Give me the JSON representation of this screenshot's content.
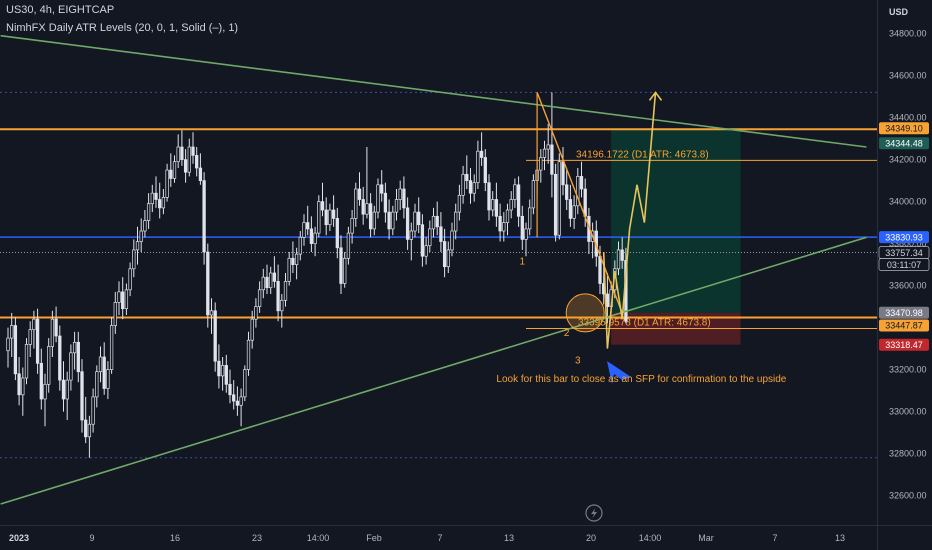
{
  "header": {
    "symbol_line": "US30, 4h, EIGHTCAP",
    "indicator_line": "NimhFX Daily ATR Levels (20, 0, 1, Solid (–), 1)"
  },
  "currency_label": "USD",
  "colors": {
    "background": "#131722",
    "candle": "#e0e3eb",
    "orange": "#f7a233",
    "green_trend": "#6fa867",
    "blue_level": "#2962ff",
    "dotted_blue": "#3a4fa8",
    "target_zone": "#0b3a30",
    "stop_zone": "#5a1f24"
  },
  "chart_data": {
    "type": "candlestick",
    "y_axis": {
      "ylim": [
        32460,
        34960
      ],
      "ticks": [
        32600,
        32800,
        33000,
        33200,
        33400,
        33600,
        33800,
        34000,
        34200,
        34400,
        34600,
        34800
      ]
    },
    "x_axis": {
      "ticks": [
        "2023",
        "9",
        "16",
        "23",
        "14:00",
        "Feb",
        "7",
        "13",
        "20",
        "14:00",
        "Mar",
        "7",
        "13"
      ]
    },
    "candles": [
      [
        33290,
        33400,
        33210,
        33350
      ],
      [
        33350,
        33470,
        33260,
        33410
      ],
      [
        33410,
        33450,
        33150,
        33180
      ],
      [
        33180,
        33260,
        33030,
        33080
      ],
      [
        33080,
        33210,
        32980,
        33160
      ],
      [
        33160,
        33350,
        33130,
        33320
      ],
      [
        33320,
        33430,
        33260,
        33390
      ],
      [
        33390,
        33480,
        33300,
        33440
      ],
      [
        33440,
        33490,
        33180,
        33230
      ],
      [
        33230,
        33300,
        33010,
        33060
      ],
      [
        33060,
        33180,
        32930,
        33130
      ],
      [
        33130,
        33350,
        33090,
        33310
      ],
      [
        33310,
        33480,
        33260,
        33440
      ],
      [
        33440,
        33500,
        33330,
        33360
      ],
      [
        33360,
        33410,
        33100,
        33150
      ],
      [
        33150,
        33240,
        33000,
        33060
      ],
      [
        33060,
        33190,
        32960,
        33150
      ],
      [
        33150,
        33320,
        33100,
        33280
      ],
      [
        33280,
        33380,
        33200,
        33330
      ],
      [
        33330,
        33380,
        33140,
        33190
      ],
      [
        33190,
        33250,
        32900,
        32960
      ],
      [
        32960,
        33070,
        32850,
        32880
      ],
      [
        32880,
        32980,
        32780,
        32940
      ],
      [
        32940,
        33110,
        32900,
        33070
      ],
      [
        33070,
        33220,
        33020,
        33190
      ],
      [
        33190,
        33310,
        33140,
        33260
      ],
      [
        33260,
        33330,
        33080,
        33110
      ],
      [
        33110,
        33240,
        33060,
        33200
      ],
      [
        33200,
        33450,
        33180,
        33410
      ],
      [
        33410,
        33570,
        33370,
        33520
      ],
      [
        33520,
        33620,
        33460,
        33570
      ],
      [
        33570,
        33640,
        33440,
        33490
      ],
      [
        33490,
        33610,
        33460,
        33580
      ],
      [
        33580,
        33710,
        33550,
        33680
      ],
      [
        33680,
        33820,
        33640,
        33770
      ],
      [
        33770,
        33880,
        33700,
        33810
      ],
      [
        33810,
        33920,
        33760,
        33860
      ],
      [
        33860,
        33960,
        33830,
        33910
      ],
      [
        33910,
        34040,
        33870,
        33990
      ],
      [
        33990,
        34080,
        33950,
        34040
      ],
      [
        34040,
        34120,
        33970,
        34010
      ],
      [
        34010,
        34090,
        33920,
        33970
      ],
      [
        33970,
        34060,
        33940,
        34020
      ],
      [
        34020,
        34180,
        34000,
        34150
      ],
      [
        34150,
        34230,
        34070,
        34110
      ],
      [
        34110,
        34220,
        34090,
        34190
      ],
      [
        34190,
        34320,
        34160,
        34260
      ],
      [
        34260,
        34340,
        34170,
        34200
      ],
      [
        34200,
        34250,
        34090,
        34140
      ],
      [
        34140,
        34300,
        34120,
        34260
      ],
      [
        34260,
        34330,
        34180,
        34220
      ],
      [
        34220,
        34260,
        34120,
        34160
      ],
      [
        34160,
        34230,
        34080,
        34100
      ],
      [
        34100,
        34140,
        33700,
        33760
      ],
      [
        33760,
        33800,
        33400,
        33460
      ],
      [
        33460,
        33540,
        33370,
        33480
      ],
      [
        33480,
        33520,
        33190,
        33240
      ],
      [
        33240,
        33320,
        33110,
        33170
      ],
      [
        33170,
        33260,
        33100,
        33220
      ],
      [
        33220,
        33270,
        33090,
        33130
      ],
      [
        33130,
        33200,
        33040,
        33080
      ],
      [
        33080,
        33150,
        33010,
        33050
      ],
      [
        33050,
        33120,
        32980,
        33030
      ],
      [
        33030,
        33110,
        32930,
        33070
      ],
      [
        33070,
        33220,
        33050,
        33200
      ],
      [
        33200,
        33380,
        33170,
        33340
      ],
      [
        33340,
        33480,
        33300,
        33440
      ],
      [
        33440,
        33540,
        33400,
        33500
      ],
      [
        33500,
        33620,
        33470,
        33580
      ],
      [
        33580,
        33680,
        33540,
        33640
      ],
      [
        33640,
        33700,
        33560,
        33590
      ],
      [
        33590,
        33690,
        33560,
        33660
      ],
      [
        33660,
        33740,
        33590,
        33620
      ],
      [
        33620,
        33700,
        33430,
        33480
      ],
      [
        33480,
        33560,
        33400,
        33530
      ],
      [
        33530,
        33660,
        33500,
        33620
      ],
      [
        33620,
        33760,
        33600,
        33730
      ],
      [
        33730,
        33810,
        33660,
        33700
      ],
      [
        33700,
        33780,
        33630,
        33750
      ],
      [
        33750,
        33860,
        33720,
        33830
      ],
      [
        33830,
        33940,
        33790,
        33900
      ],
      [
        33900,
        33980,
        33840,
        33870
      ],
      [
        33870,
        33930,
        33760,
        33800
      ],
      [
        33800,
        33880,
        33740,
        33850
      ],
      [
        33850,
        34030,
        33830,
        34000
      ],
      [
        34000,
        34090,
        33930,
        33960
      ],
      [
        33960,
        34020,
        33840,
        33890
      ],
      [
        33890,
        33990,
        33860,
        33960
      ],
      [
        33960,
        34030,
        33880,
        33920
      ],
      [
        33920,
        33970,
        33730,
        33780
      ],
      [
        33780,
        33840,
        33560,
        33610
      ],
      [
        33610,
        33760,
        33590,
        33730
      ],
      [
        33730,
        33880,
        33700,
        33850
      ],
      [
        33850,
        33960,
        33800,
        33920
      ],
      [
        33920,
        34090,
        33880,
        34060
      ],
      [
        34060,
        34140,
        33980,
        34010
      ],
      [
        34010,
        34070,
        33890,
        33940
      ],
      [
        33940,
        34260,
        33920,
        33990
      ],
      [
        33990,
        34040,
        33830,
        33870
      ],
      [
        33870,
        33980,
        33840,
        33950
      ],
      [
        33950,
        34110,
        33920,
        34080
      ],
      [
        34080,
        34150,
        34000,
        34040
      ],
      [
        34040,
        34090,
        33900,
        33950
      ],
      [
        33950,
        34010,
        33820,
        33870
      ],
      [
        33870,
        33980,
        33840,
        33950
      ],
      [
        33950,
        34060,
        33910,
        34010
      ],
      [
        34010,
        34100,
        33960,
        34060
      ],
      [
        34060,
        34120,
        33920,
        33970
      ],
      [
        33970,
        34020,
        33770,
        33820
      ],
      [
        33820,
        33900,
        33720,
        33860
      ],
      [
        33860,
        33990,
        33830,
        33950
      ],
      [
        33950,
        34020,
        33850,
        33890
      ],
      [
        33890,
        33940,
        33690,
        33740
      ],
      [
        33740,
        33830,
        33700,
        33790
      ],
      [
        33790,
        33910,
        33760,
        33870
      ],
      [
        33870,
        33970,
        33830,
        33930
      ],
      [
        33930,
        34000,
        33840,
        33880
      ],
      [
        33880,
        33950,
        33760,
        33810
      ],
      [
        33810,
        33870,
        33640,
        33690
      ],
      [
        33690,
        33810,
        33660,
        33770
      ],
      [
        33770,
        33900,
        33740,
        33860
      ],
      [
        33860,
        33990,
        33820,
        33950
      ],
      [
        33950,
        34080,
        33910,
        34030
      ],
      [
        34030,
        34170,
        33990,
        34130
      ],
      [
        34130,
        34220,
        34060,
        34100
      ],
      [
        34100,
        34160,
        33990,
        34040
      ],
      [
        34040,
        34130,
        34000,
        34090
      ],
      [
        34090,
        34290,
        34060,
        34240
      ],
      [
        34240,
        34330,
        34170,
        34210
      ],
      [
        34210,
        34250,
        34050,
        34090
      ],
      [
        34090,
        34130,
        33910,
        33960
      ],
      [
        33960,
        34050,
        33930,
        34010
      ],
      [
        34010,
        34090,
        33880,
        33930
      ],
      [
        33930,
        33990,
        33810,
        33860
      ],
      [
        33860,
        33950,
        33810,
        33900
      ],
      [
        33900,
        33990,
        33840,
        33960
      ],
      [
        33960,
        34050,
        33920,
        34010
      ],
      [
        34010,
        34110,
        33970,
        34080
      ],
      [
        34080,
        34120,
        33880,
        33930
      ],
      [
        33930,
        33980,
        33770,
        33820
      ],
      [
        33820,
        33900,
        33740,
        33870
      ],
      [
        33870,
        34010,
        33840,
        33970
      ],
      [
        33970,
        34130,
        33940,
        34100
      ],
      [
        34100,
        34190,
        34030,
        34150
      ],
      [
        34150,
        34250,
        34090,
        34210
      ],
      [
        34210,
        34290,
        34150,
        34250
      ],
      [
        34250,
        34370,
        34180,
        34270
      ],
      [
        34270,
        34520,
        34020,
        34130
      ],
      [
        34130,
        34180,
        33810,
        33840
      ],
      [
        33840,
        34230,
        33820,
        34190
      ],
      [
        34190,
        34260,
        34030,
        34080
      ],
      [
        34080,
        34150,
        33960,
        34010
      ],
      [
        34010,
        34080,
        33880,
        33920
      ],
      [
        33920,
        34030,
        33870,
        33980
      ],
      [
        33980,
        34160,
        33940,
        34120
      ],
      [
        34120,
        34190,
        34020,
        34060
      ],
      [
        34060,
        34110,
        33880,
        33930
      ],
      [
        33930,
        33970,
        33750,
        33810
      ],
      [
        33810,
        33900,
        33730,
        33860
      ],
      [
        33860,
        33910,
        33690,
        33740
      ],
      [
        33740,
        33790,
        33560,
        33610
      ],
      [
        33610,
        33700,
        33510,
        33560
      ],
      [
        33560,
        33660,
        33420,
        33500
      ],
      [
        33500,
        33620,
        33470,
        33580
      ],
      [
        33580,
        33720,
        33540,
        33680
      ],
      [
        33680,
        33810,
        33650,
        33770
      ],
      [
        33770,
        33830,
        33680,
        33720
      ],
      [
        33720,
        33780,
        33420,
        33430
      ]
    ],
    "price_levels": [
      {
        "price": 34344.48,
        "role": "resistance",
        "color": "orange"
      },
      {
        "price": 33447.87,
        "role": "support",
        "color": "orange"
      },
      {
        "price": 33830.93,
        "role": "level",
        "color": "blue"
      },
      {
        "price": 34520,
        "role": "dotted",
        "color": "blue"
      },
      {
        "price": 32780,
        "role": "dotted",
        "color": "blue"
      },
      {
        "price": 33757.34,
        "role": "current",
        "color": "white"
      }
    ],
    "trendlines": [
      {
        "name": "upper",
        "from": {
          "bar": -2,
          "price": 34790
        },
        "to": {
          "bar": 232,
          "price": 34260
        },
        "color": "green"
      },
      {
        "name": "lower",
        "from": {
          "bar": -2,
          "price": 32560
        },
        "to": {
          "bar": 232,
          "price": 33830
        },
        "color": "green"
      }
    ],
    "atr_levels": [
      {
        "price": 34196.1722,
        "label": "34196.1722 (D1 ATR: 4673.8)"
      },
      {
        "price": 33395.9578,
        "label": "33395.9578 (D1 ATR: 4673.8)"
      }
    ],
    "position": {
      "entry": 33470.98,
      "target": 34349.1,
      "stop": 33318.47,
      "start_bar": 163,
      "end_bar": 198
    },
    "price_badges": [
      {
        "text": "34349.10",
        "price": 34349.1,
        "bg": "#f7a233",
        "fg": "#131722"
      },
      {
        "text": "34344.48",
        "price": 34344.48,
        "bg": "#1e5e54",
        "fg": "#ffffff",
        "offset": 14
      },
      {
        "text": "33830.93",
        "price": 33830.93,
        "bg": "#2962ff",
        "fg": "#ffffff"
      },
      {
        "text": "33757.34",
        "price": 33757.34,
        "bg": "#131722",
        "fg": "#d1d4dc",
        "border": "#d1d4dc"
      },
      {
        "text": "03:11:07",
        "price": 33757.34,
        "bg": "#131722",
        "fg": "#d1d4dc",
        "border": "#d1d4dc",
        "offset": 12
      },
      {
        "text": "33470.98",
        "price": 33470.98,
        "bg": "#787b86",
        "fg": "#ffffff"
      },
      {
        "text": "33447.87",
        "price": 33447.87,
        "bg": "#f7a233",
        "fg": "#131722",
        "offset": 8
      },
      {
        "text": "33318.47",
        "price": 33318.47,
        "bg": "#c2272d",
        "fg": "#ffffff"
      }
    ],
    "annotations": [
      {
        "text": "1",
        "bar": 139,
        "price": 33700
      },
      {
        "text": "2",
        "bar": 151,
        "price": 33360
      },
      {
        "text": "3",
        "bar": 154,
        "price": 33230
      },
      {
        "text": "Look for this bar to close as an SFP for confirmation to the upside",
        "bar": 132,
        "price": 33140
      }
    ]
  }
}
